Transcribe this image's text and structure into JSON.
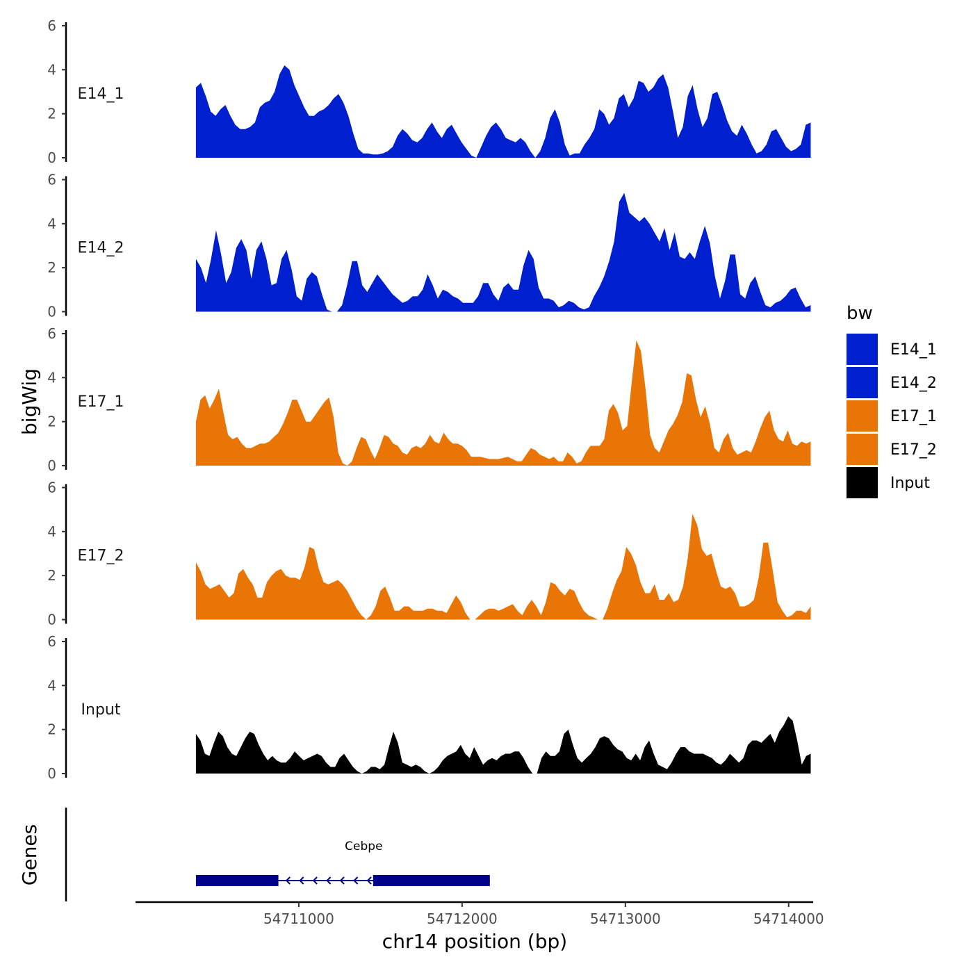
{
  "chart_data": {
    "type": "area",
    "title": "",
    "ylabel": "bigWig",
    "xlabel": "chr14 position (bp)",
    "gene_panel_label": "Genes",
    "x_range": [
      54710000,
      54714150
    ],
    "data_x_range": [
      54710370,
      54714135
    ],
    "ylim": [
      0,
      6
    ],
    "y_ticks": [
      "0",
      "2",
      "4",
      "6"
    ],
    "x_ticks": [
      {
        "value": 54711000,
        "label": "54711000"
      },
      {
        "value": 54712000,
        "label": "54712000"
      },
      {
        "value": 54713000,
        "label": "54713000"
      },
      {
        "value": 54714000,
        "label": "54714000"
      }
    ],
    "legend": {
      "title": "bw",
      "entries": [
        {
          "label": "E14_1",
          "color": "#0020D0"
        },
        {
          "label": "E14_2",
          "color": "#0020D0"
        },
        {
          "label": "E17_1",
          "color": "#E87506"
        },
        {
          "label": "E17_2",
          "color": "#E87506"
        },
        {
          "label": "Input",
          "color": "#000000"
        }
      ]
    },
    "tracks": [
      {
        "name": "E14_1",
        "color": "#0020D0",
        "values": [
          3.2,
          3.4,
          2.8,
          2.1,
          1.9,
          2.2,
          2.4,
          1.9,
          1.5,
          1.3,
          1.3,
          1.4,
          1.6,
          2.3,
          2.5,
          2.6,
          3.0,
          3.8,
          4.2,
          4.0,
          3.3,
          2.8,
          2.3,
          1.9,
          1.9,
          2.1,
          2.2,
          2.4,
          2.7,
          2.9,
          2.5,
          1.9,
          1.1,
          0.4,
          0.2,
          0.2,
          0.15,
          0.15,
          0.2,
          0.3,
          0.5,
          1.0,
          1.3,
          1.1,
          0.8,
          0.7,
          0.9,
          1.3,
          1.6,
          1.2,
          0.9,
          1.3,
          1.5,
          1.1,
          0.7,
          0.4,
          0.1,
          0.0,
          0.5,
          1.0,
          1.4,
          1.6,
          1.3,
          0.9,
          0.8,
          0.7,
          0.9,
          0.7,
          0.3,
          0.0,
          0.3,
          0.9,
          1.8,
          2.2,
          1.6,
          0.6,
          0.1,
          0.2,
          0.2,
          0.6,
          0.9,
          1.3,
          2.2,
          2.0,
          1.5,
          1.8,
          2.7,
          2.9,
          2.3,
          2.7,
          3.5,
          3.4,
          3.0,
          3.2,
          3.6,
          3.8,
          3.2,
          2.1,
          0.9,
          1.4,
          2.8,
          3.3,
          2.2,
          1.4,
          1.8,
          2.9,
          3.0,
          2.4,
          1.7,
          1.2,
          1.0,
          1.5,
          1.1,
          0.6,
          0.2,
          0.3,
          0.6,
          1.2,
          1.3,
          0.9,
          0.5,
          0.3,
          0.4,
          0.6,
          1.5,
          1.6
        ]
      },
      {
        "name": "E14_2",
        "color": "#0020D0",
        "values": [
          2.4,
          2.0,
          1.3,
          2.4,
          3.7,
          2.6,
          1.3,
          1.8,
          2.9,
          3.3,
          2.8,
          1.5,
          2.8,
          3.2,
          2.4,
          1.2,
          1.3,
          2.4,
          2.8,
          1.9,
          0.7,
          0.5,
          1.5,
          1.8,
          1.6,
          0.8,
          0.1,
          0.0,
          0.0,
          0.3,
          1.2,
          2.3,
          2.3,
          1.2,
          0.9,
          1.3,
          1.7,
          1.4,
          1.1,
          0.8,
          0.6,
          0.4,
          0.5,
          0.7,
          0.7,
          1.0,
          1.7,
          1.2,
          0.6,
          1.0,
          0.9,
          0.7,
          0.6,
          0.4,
          0.4,
          0.4,
          0.7,
          1.3,
          1.3,
          0.8,
          0.5,
          1.1,
          1.3,
          1.0,
          1.0,
          2.1,
          2.8,
          2.4,
          1.1,
          0.6,
          0.6,
          0.5,
          0.2,
          0.3,
          0.5,
          0.4,
          0.2,
          0.1,
          0.2,
          0.7,
          1.1,
          1.6,
          2.3,
          3.2,
          5.0,
          5.4,
          4.5,
          4.3,
          4.1,
          4.3,
          4.0,
          3.6,
          3.2,
          3.8,
          2.8,
          3.6,
          2.5,
          2.4,
          2.7,
          2.4,
          3.2,
          3.9,
          3.1,
          1.6,
          0.6,
          1.4,
          2.6,
          2.6,
          0.8,
          0.6,
          1.3,
          1.6,
          0.9,
          0.3,
          0.2,
          0.4,
          0.5,
          0.7,
          1.0,
          1.1,
          0.6,
          0.2,
          0.3
        ]
      },
      {
        "name": "E17_1",
        "color": "#E87506",
        "values": [
          2.0,
          3.0,
          3.2,
          2.6,
          3.0,
          3.5,
          2.4,
          1.4,
          1.2,
          1.3,
          1.0,
          0.8,
          0.8,
          0.9,
          1.0,
          1.0,
          1.1,
          1.3,
          1.5,
          1.9,
          2.4,
          3.0,
          3.0,
          2.5,
          2.0,
          2.0,
          2.3,
          2.6,
          2.9,
          3.1,
          2.2,
          0.6,
          0.1,
          0.0,
          0.2,
          0.8,
          1.3,
          1.2,
          0.7,
          0.3,
          0.8,
          1.4,
          1.3,
          1.0,
          0.9,
          0.6,
          0.5,
          0.8,
          0.9,
          0.8,
          1.0,
          1.4,
          1.1,
          1.0,
          1.5,
          1.2,
          1.0,
          1.0,
          0.9,
          0.7,
          0.4,
          0.4,
          0.4,
          0.35,
          0.3,
          0.3,
          0.3,
          0.35,
          0.4,
          0.3,
          0.2,
          0.2,
          0.5,
          0.8,
          0.7,
          0.5,
          0.4,
          0.3,
          0.4,
          0.2,
          0.2,
          0.6,
          0.4,
          0.1,
          0.2,
          0.6,
          0.9,
          0.9,
          0.9,
          1.2,
          2.5,
          2.8,
          2.4,
          1.6,
          1.8,
          3.8,
          5.7,
          5.2,
          3.5,
          1.4,
          0.8,
          0.6,
          1.1,
          1.6,
          1.9,
          2.3,
          2.9,
          4.2,
          4.1,
          3.0,
          2.2,
          2.7,
          1.9,
          0.8,
          0.6,
          1.2,
          1.5,
          0.8,
          0.5,
          0.6,
          0.7,
          0.6,
          1.1,
          1.7,
          2.2,
          2.5,
          1.6,
          1.2,
          1.1,
          1.6,
          1.0,
          0.9,
          1.1,
          1.0,
          1.1
        ]
      },
      {
        "name": "E17_2",
        "color": "#E87506",
        "values": [
          2.6,
          2.2,
          1.6,
          1.4,
          1.5,
          1.6,
          1.3,
          1.0,
          1.2,
          2.1,
          2.3,
          1.9,
          1.6,
          1.0,
          1.0,
          1.7,
          2.0,
          2.2,
          2.3,
          2.0,
          1.9,
          1.9,
          1.8,
          2.4,
          3.3,
          3.2,
          2.3,
          1.7,
          1.6,
          1.7,
          1.8,
          1.6,
          1.3,
          0.9,
          0.5,
          0.2,
          0.0,
          0.2,
          0.6,
          1.3,
          1.5,
          1.0,
          0.4,
          0.4,
          0.6,
          0.6,
          0.4,
          0.4,
          0.4,
          0.5,
          0.5,
          0.4,
          0.4,
          0.3,
          0.7,
          1.1,
          0.8,
          0.3,
          0.0,
          0.0,
          0.2,
          0.4,
          0.5,
          0.5,
          0.4,
          0.5,
          0.6,
          0.7,
          0.4,
          0.2,
          0.6,
          0.9,
          0.6,
          0.2,
          0.8,
          1.7,
          1.6,
          1.3,
          1.1,
          1.4,
          1.3,
          0.8,
          0.4,
          0.2,
          0.1,
          0.0,
          0.0,
          0.5,
          1.2,
          1.8,
          2.2,
          3.3,
          3.0,
          2.5,
          1.7,
          1.2,
          1.2,
          1.6,
          0.9,
          0.9,
          1.2,
          0.8,
          0.9,
          1.5,
          2.8,
          4.8,
          4.3,
          3.2,
          2.9,
          3.0,
          2.2,
          1.5,
          1.4,
          1.5,
          1.2,
          0.6,
          0.6,
          0.7,
          0.9,
          1.9,
          3.5,
          3.5,
          2.2,
          0.8,
          0.4,
          0.1,
          0.2,
          0.4,
          0.4,
          0.3,
          0.6
        ]
      },
      {
        "name": "Input",
        "color": "#000000",
        "values": [
          1.8,
          1.5,
          0.9,
          0.8,
          1.4,
          1.9,
          1.7,
          1.2,
          0.9,
          0.8,
          1.2,
          1.6,
          1.9,
          1.8,
          1.3,
          0.9,
          0.6,
          0.8,
          0.6,
          0.5,
          0.5,
          0.7,
          1.0,
          0.8,
          0.6,
          0.7,
          0.8,
          0.9,
          0.8,
          0.5,
          0.3,
          0.3,
          0.7,
          0.9,
          0.6,
          0.3,
          0.1,
          0.0,
          0.1,
          0.3,
          0.3,
          0.2,
          0.4,
          1.2,
          1.9,
          1.4,
          0.5,
          0.4,
          0.3,
          0.4,
          0.3,
          0.1,
          0.0,
          0.1,
          0.3,
          0.6,
          0.8,
          0.9,
          1.0,
          1.3,
          0.9,
          0.7,
          1.2,
          0.8,
          0.4,
          0.6,
          0.7,
          0.6,
          0.8,
          0.9,
          0.9,
          1.0,
          1.0,
          0.7,
          0.3,
          0.0,
          0.0,
          0.7,
          1.0,
          0.8,
          0.8,
          1.0,
          1.8,
          2.0,
          1.3,
          0.7,
          0.5,
          0.7,
          0.9,
          1.2,
          1.6,
          1.7,
          1.6,
          1.3,
          1.1,
          1.0,
          0.7,
          0.6,
          0.9,
          0.6,
          1.2,
          1.5,
          0.9,
          0.4,
          0.3,
          0.2,
          0.5,
          0.9,
          1.2,
          1.2,
          1.0,
          0.9,
          0.9,
          0.9,
          0.8,
          0.7,
          0.5,
          0.4,
          0.6,
          0.9,
          0.7,
          0.5,
          0.7,
          1.3,
          1.5,
          1.5,
          1.4,
          1.6,
          1.8,
          1.4,
          1.9,
          2.2,
          2.6,
          2.4,
          1.5,
          0.4,
          0.8,
          0.9
        ]
      }
    ],
    "gene": {
      "name": "Cebpe",
      "strand": "-",
      "start": 54710370,
      "end": 54712170,
      "exons": [
        [
          54710370,
          54710875
        ],
        [
          54711455,
          54712170
        ]
      ]
    }
  }
}
